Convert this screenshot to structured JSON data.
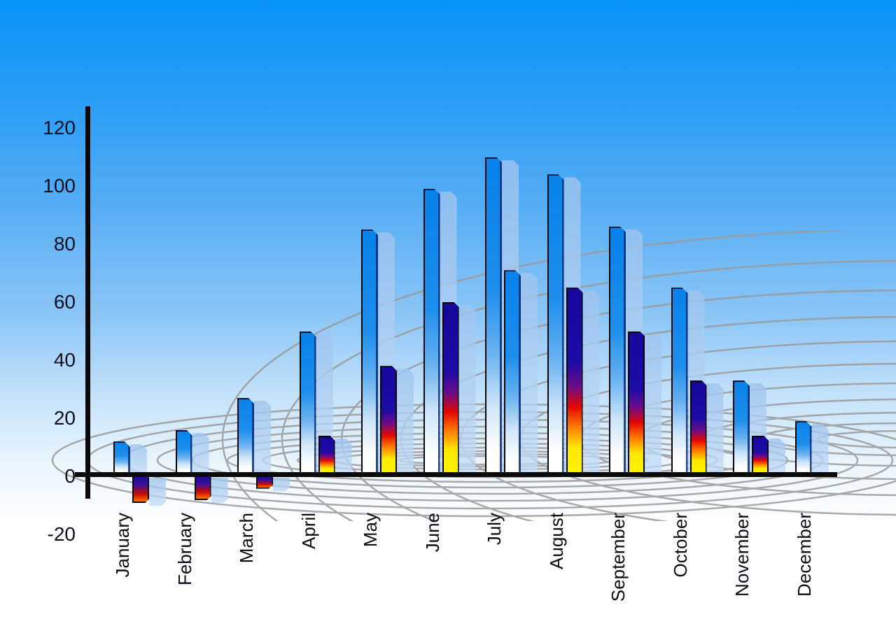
{
  "chart_data": {
    "type": "bar",
    "title": "",
    "categories": [
      "January",
      "February",
      "March",
      "April",
      "May",
      "June",
      "July",
      "August",
      "September",
      "October",
      "November",
      "December"
    ],
    "series": [
      {
        "name": "primary-blue-bars",
        "style": "blue-gradient",
        "values": [
          12,
          16,
          27,
          50,
          85,
          99,
          110,
          104,
          86,
          65,
          33,
          19
        ]
      },
      {
        "name": "secondary-spectrum-bars",
        "style": "spectrum-gradient",
        "values": [
          -9,
          -8,
          -4,
          14,
          38,
          60,
          71,
          65,
          50,
          33,
          14,
          null
        ],
        "per_bar_style": [
          "spectrum",
          "spectrum",
          "spectrum",
          "spectrum",
          "spectrum",
          "spectrum",
          "blue",
          "spectrum",
          "spectrum",
          "spectrum",
          "spectrum",
          null
        ]
      }
    ],
    "y_ticks": [
      120,
      100,
      80,
      60,
      40,
      20,
      0,
      -20
    ],
    "ylim": [
      -20,
      120
    ],
    "xlabel": "",
    "ylabel": "",
    "legend_position": "none",
    "grid": "curved perspective ground grid",
    "x_label_rotation_deg": 90
  },
  "colors": {
    "sky_top": "#0994f8",
    "sky_bottom": "#ffffff",
    "bar_blue_top": "#0782ea",
    "bar_blue_bottom": "#ffffff",
    "bar_edge_navy": "#0a2d78",
    "spectrum_navy": "#1d0ba6",
    "spectrum_red": "#e40700",
    "spectrum_yellow": "#fff400",
    "ghost_bar": "#b9d4f3",
    "grid_line": "#9b9b9b",
    "axis": "#0a0a0a",
    "tick_text": "#0e0e22"
  }
}
